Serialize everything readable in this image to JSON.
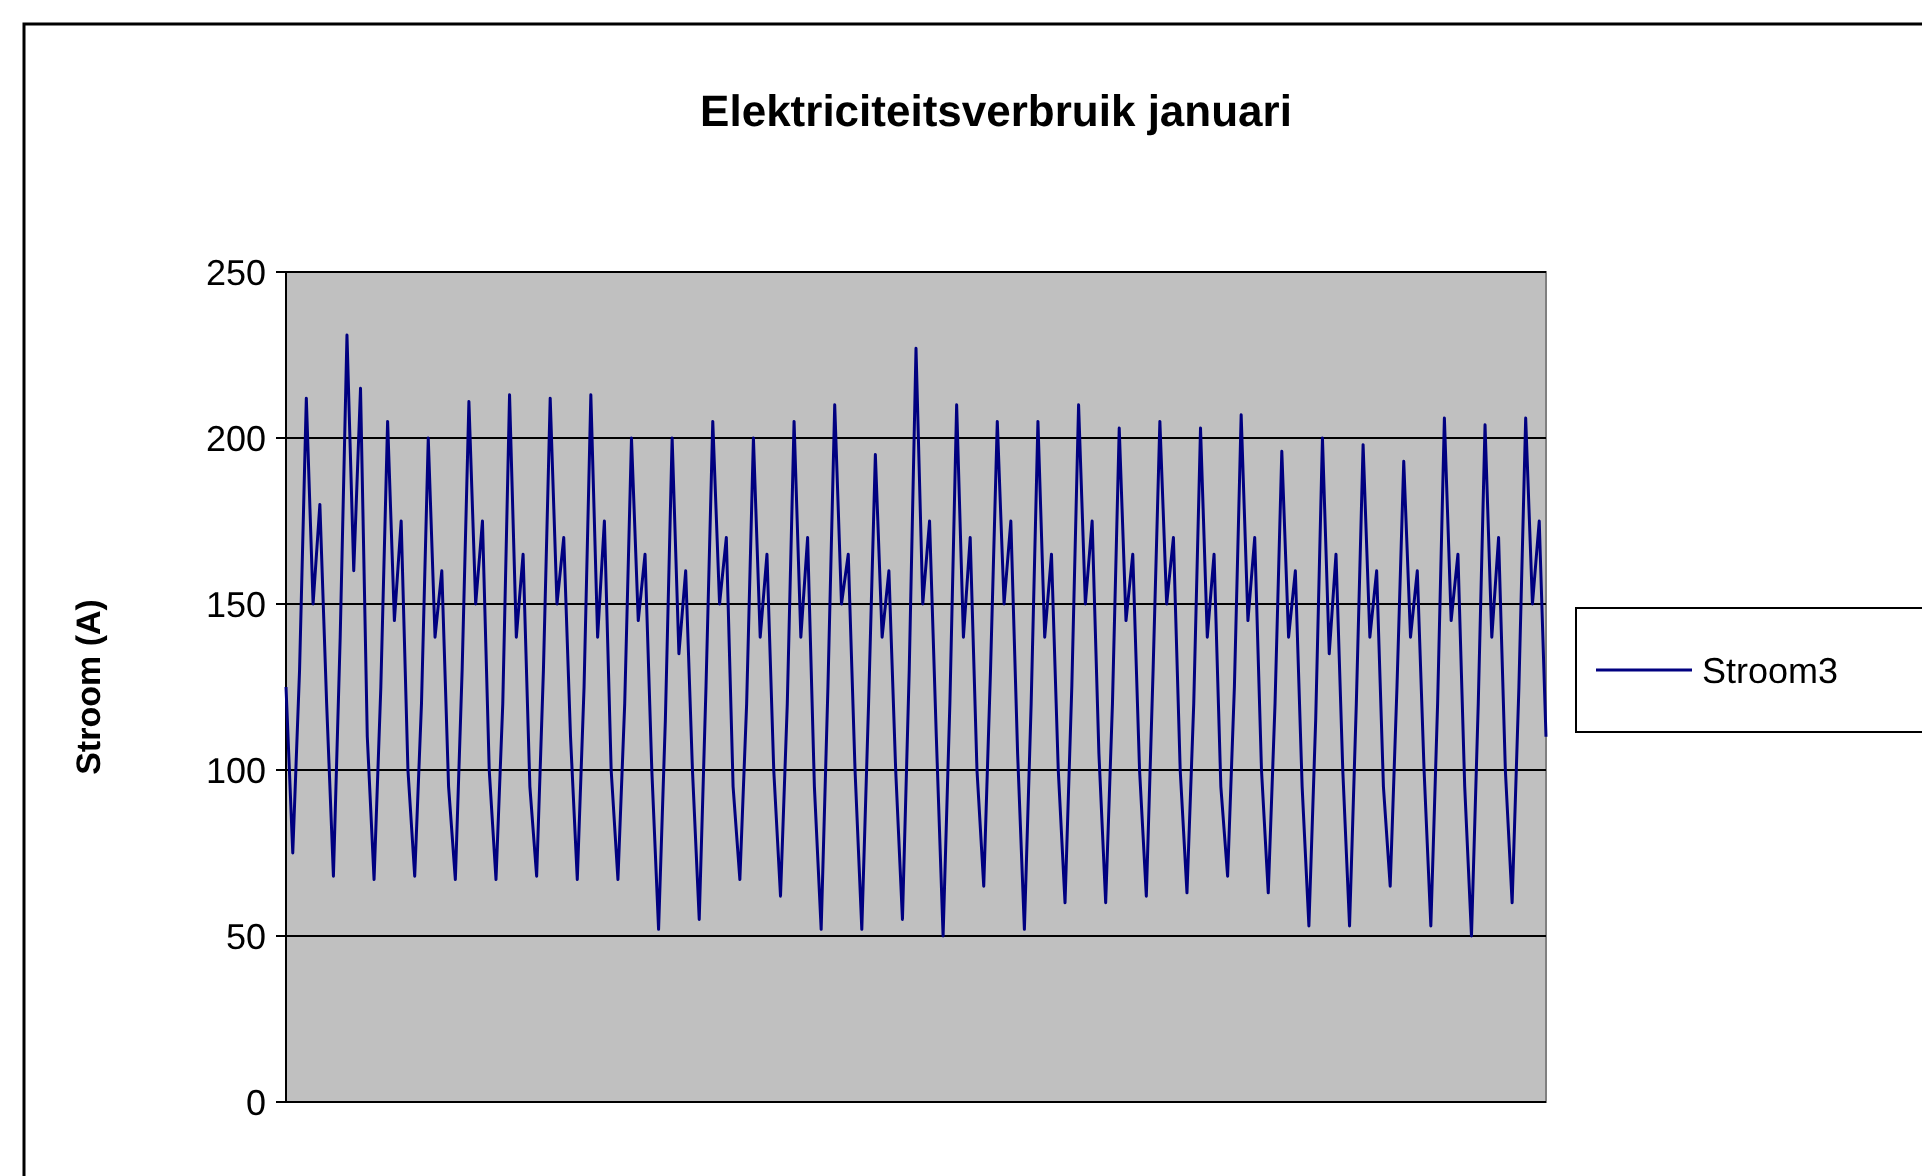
{
  "chart_data": {
    "type": "line",
    "title": "Elektriciteitsverbruik januari",
    "ylabel": "Stroom (A)",
    "categories": [
      null,
      null,
      null,
      null,
      null,
      null,
      null,
      null,
      null,
      null,
      null,
      null,
      null,
      null,
      null,
      null,
      null,
      null,
      null,
      null,
      null,
      null,
      null,
      null,
      null,
      null,
      null,
      null,
      null,
      null,
      null,
      null,
      null,
      null,
      null,
      null,
      null,
      null,
      null,
      null,
      null,
      null,
      null,
      null,
      null,
      null,
      null,
      null,
      null,
      null,
      null,
      null,
      null,
      null,
      null,
      null,
      null,
      null,
      null,
      null,
      null,
      null,
      null,
      null,
      null,
      null,
      null,
      null,
      null,
      null,
      null,
      null,
      null,
      null,
      null,
      null,
      null,
      null,
      null,
      null,
      null,
      null,
      null,
      null,
      null,
      null,
      null,
      null,
      null,
      null,
      null,
      null,
      null,
      null,
      null,
      null,
      null,
      null,
      null,
      null,
      null,
      null,
      null,
      null,
      null,
      null,
      null,
      null,
      null,
      null,
      null,
      null,
      null,
      null,
      null,
      null,
      null,
      null,
      null,
      null,
      null,
      null,
      null,
      null,
      null,
      null,
      null,
      null,
      null,
      null,
      null,
      null,
      null,
      null,
      null,
      null,
      null,
      null,
      null,
      null,
      null,
      null,
      null,
      null,
      null,
      null,
      null,
      null,
      null,
      null,
      null,
      null,
      null,
      null,
      null,
      null,
      null,
      null,
      null,
      null,
      null,
      null,
      null,
      null,
      null,
      null,
      null,
      null,
      null,
      null,
      null,
      null,
      null,
      null,
      null,
      null,
      null,
      null,
      null,
      null,
      null,
      null,
      null,
      null,
      null,
      null,
      null
    ],
    "series": [
      {
        "name": "Stroom3",
        "color": "#000080",
        "values": [
          125,
          75,
          130,
          212,
          150,
          180,
          120,
          68,
          140,
          231,
          160,
          215,
          110,
          67,
          125,
          205,
          145,
          175,
          100,
          68,
          120,
          200,
          140,
          160,
          95,
          67,
          130,
          211,
          150,
          175,
          100,
          67,
          120,
          213,
          140,
          165,
          95,
          68,
          130,
          212,
          150,
          170,
          110,
          67,
          125,
          213,
          140,
          175,
          100,
          67,
          120,
          200,
          145,
          165,
          100,
          52,
          115,
          200,
          135,
          160,
          100,
          55,
          125,
          205,
          150,
          170,
          95,
          67,
          120,
          200,
          140,
          165,
          100,
          62,
          120,
          205,
          140,
          170,
          95,
          52,
          125,
          210,
          150,
          165,
          100,
          52,
          120,
          195,
          140,
          160,
          100,
          55,
          130,
          227,
          150,
          175,
          110,
          50,
          120,
          210,
          140,
          170,
          100,
          65,
          130,
          205,
          150,
          175,
          105,
          52,
          120,
          205,
          140,
          165,
          100,
          60,
          125,
          210,
          150,
          175,
          105,
          60,
          120,
          203,
          145,
          165,
          100,
          62,
          130,
          205,
          150,
          170,
          100,
          63,
          120,
          203,
          140,
          165,
          95,
          68,
          125,
          207,
          145,
          170,
          100,
          63,
          120,
          196,
          140,
          160,
          95,
          53,
          115,
          200,
          135,
          165,
          100,
          53,
          120,
          198,
          140,
          160,
          95,
          65,
          125,
          193,
          140,
          160,
          100,
          53,
          120,
          206,
          145,
          165,
          95,
          50,
          120,
          204,
          140,
          170,
          100,
          60,
          125,
          206,
          150,
          175,
          110
        ]
      }
    ],
    "ylim": [
      0,
      250
    ],
    "yticks": [
      0,
      50,
      100,
      150,
      200,
      250
    ],
    "grid": "y",
    "legend": "right",
    "marker": "none",
    "line_style": "solid"
  }
}
